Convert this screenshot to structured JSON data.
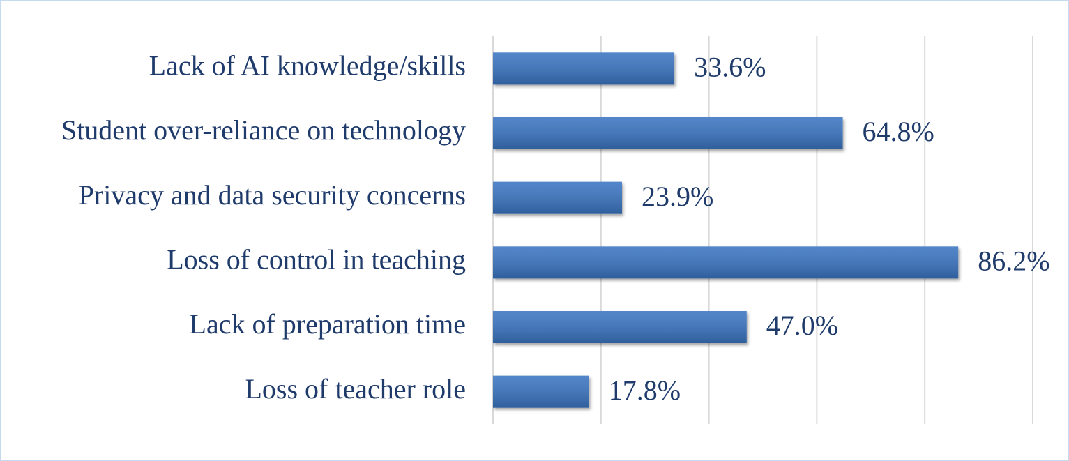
{
  "chart_data": {
    "type": "bar",
    "orientation": "horizontal",
    "categories": [
      "Lack of AI knowledge/skills",
      "Student over-reliance on technology",
      "Privacy and data security concerns",
      "Loss of control in teaching",
      "Lack of preparation time",
      "Loss of teacher role"
    ],
    "values": [
      33.6,
      64.8,
      23.9,
      86.2,
      47.0,
      17.8
    ],
    "value_labels": [
      "33.6%",
      "64.8%",
      "23.9%",
      "86.2%",
      "47.0%",
      "17.8%"
    ],
    "color": "#3a74c2",
    "xlim": [
      0,
      100
    ],
    "xticks": [
      0,
      20,
      40,
      60,
      80,
      100
    ],
    "grid": true
  }
}
